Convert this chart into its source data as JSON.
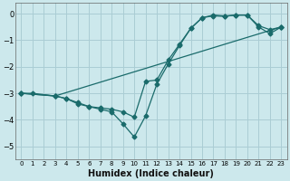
{
  "xlabel": "Humidex (Indice chaleur)",
  "bg_color": "#cce8ec",
  "grid_color": "#aacdd4",
  "line_color": "#1a6b6b",
  "xlim": [
    -0.5,
    23.5
  ],
  "ylim": [
    -5.5,
    0.4
  ],
  "yticks": [
    0,
    -1,
    -2,
    -3,
    -4,
    -5
  ],
  "xticks": [
    0,
    1,
    2,
    3,
    4,
    5,
    6,
    7,
    8,
    9,
    10,
    11,
    12,
    13,
    14,
    15,
    16,
    17,
    18,
    19,
    20,
    21,
    22,
    23
  ],
  "line1_x": [
    0,
    1,
    3,
    4,
    5,
    6,
    7,
    8,
    9,
    10,
    11,
    12,
    13,
    14,
    15,
    16,
    17,
    18,
    19,
    20,
    21,
    22,
    23
  ],
  "line1_y": [
    -3.0,
    -3.0,
    -3.1,
    -3.2,
    -3.35,
    -3.5,
    -3.6,
    -3.7,
    -4.15,
    -4.65,
    -3.85,
    -2.65,
    -1.9,
    -1.2,
    -0.55,
    -0.15,
    -0.08,
    -0.1,
    -0.05,
    -0.05,
    -0.5,
    -0.75,
    -0.5
  ],
  "line2_x": [
    0,
    3,
    4,
    5,
    6,
    7,
    8,
    9,
    10,
    11,
    12,
    13,
    14,
    15,
    16,
    17,
    18,
    19,
    20,
    21,
    22,
    23
  ],
  "line2_y": [
    -3.0,
    -3.1,
    -3.2,
    -3.4,
    -3.5,
    -3.55,
    -3.6,
    -3.7,
    -3.9,
    -2.55,
    -2.5,
    -1.75,
    -1.15,
    -0.55,
    -0.15,
    -0.05,
    -0.08,
    -0.05,
    -0.05,
    -0.45,
    -0.6,
    -0.5
  ],
  "line3_x": [
    0,
    3,
    23
  ],
  "line3_y": [
    -3.0,
    -3.1,
    -0.5
  ],
  "marker_size": 2.5,
  "linewidth": 0.9
}
